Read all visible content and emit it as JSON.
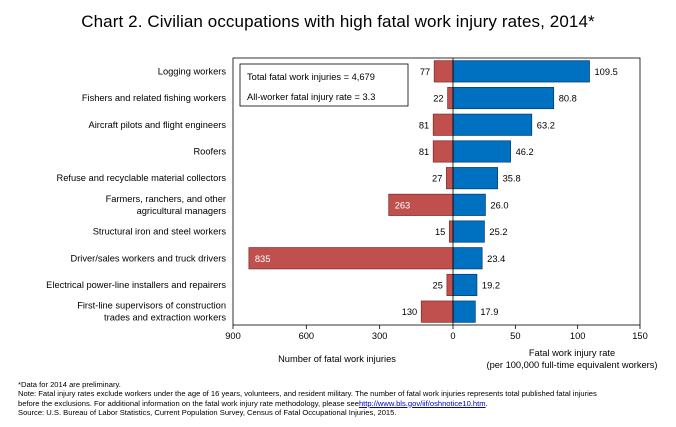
{
  "title": "Chart 2. Civilian occupations with high fatal work injury rates, 2014*",
  "chart_data": {
    "type": "bar",
    "layout": "diverging-horizontal",
    "categories": [
      [
        "Logging workers"
      ],
      [
        "Fishers and related fishing workers"
      ],
      [
        "Aircraft pilots and flight engineers"
      ],
      [
        "Roofers"
      ],
      [
        "Refuse and recyclable material collectors"
      ],
      [
        "Farmers, ranchers, and other",
        "agricultural managers"
      ],
      [
        "Structural iron and steel workers"
      ],
      [
        "Driver/sales workers and truck drivers"
      ],
      [
        "Electrical power-line installers and repairers"
      ],
      [
        "First-line supervisors of construction",
        "trades and extraction workers"
      ]
    ],
    "series": [
      {
        "name": "Number of fatal work injuries",
        "values": [
          77,
          22,
          81,
          81,
          27,
          263,
          15,
          835,
          25,
          130
        ],
        "value_labels": [
          "77",
          "22",
          "81",
          "81",
          "27",
          "263",
          "15",
          "835",
          "25",
          "130"
        ],
        "color": "#c0504d",
        "xlim": [
          900,
          0
        ],
        "ticks": [
          900,
          600,
          300,
          0
        ],
        "tick_labels": [
          "900",
          "600",
          "300",
          "0"
        ],
        "xlabel": [
          "Number of fatal work injuries"
        ]
      },
      {
        "name": "Fatal work injury rate",
        "values": [
          109.5,
          80.8,
          63.2,
          46.2,
          35.8,
          26.0,
          25.2,
          23.4,
          19.2,
          17.9
        ],
        "value_labels": [
          "109.5",
          "80.8",
          "63.2",
          "46.2",
          "35.8",
          "26.0",
          "25.2",
          "23.4",
          "19.2",
          "17.9"
        ],
        "color": "#0070c0",
        "xlim": [
          0,
          150
        ],
        "ticks": [
          50,
          100,
          150
        ],
        "tick_labels": [
          "50",
          "100",
          "150"
        ],
        "xlabel": [
          "Fatal work injury rate",
          "(per 100,000 full-time equivalent workers)"
        ]
      }
    ],
    "annotations": [
      "Total fatal work injuries = 4,679",
      "All-worker fatal injury rate = 3.3"
    ]
  },
  "notes": {
    "line1": "*Data for 2014 are preliminary.",
    "line2": "Note: Fatal injury rates exclude workers under the age of 16 years, volunteers, and resident military. The number of fatal work injuries represents total published fatal injuries",
    "line3": "before the exclusions. For additional information on the fatal work injury rate methodology, please see",
    "link": "http://www.bls.gov/iif/oshnotice10.htm",
    "line3_end": ".",
    "line4": "Source:  U.S. Bureau of Labor Statistics, Current Population Survey, Census of Fatal Occupational Injuries, 2015."
  }
}
